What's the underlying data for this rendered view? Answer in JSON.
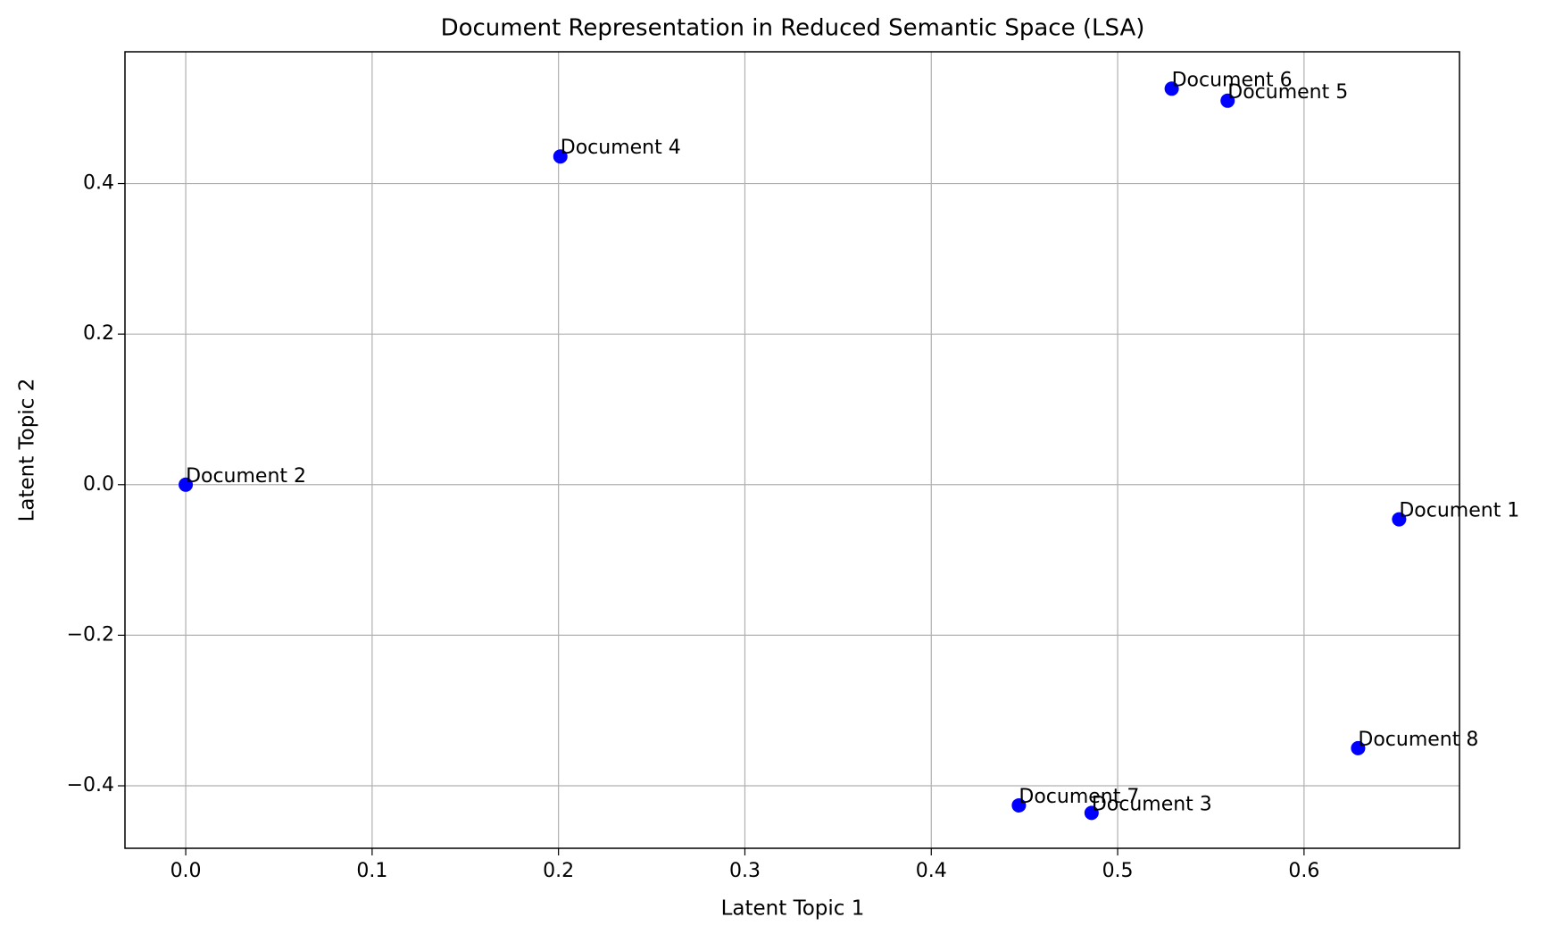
{
  "chart_data": {
    "type": "scatter",
    "title": "Document Representation in Reduced Semantic Space (LSA)",
    "xlabel": "Latent Topic 1",
    "ylabel": "Latent Topic 2",
    "color": "#0000ff",
    "labels": [
      "Document 1",
      "Document 2",
      "Document 3",
      "Document 4",
      "Document 5",
      "Document 6",
      "Document 7",
      "Document 8"
    ],
    "x": [
      0.651,
      0,
      0.486,
      0.201,
      0.559,
      0.529,
      0.447,
      0.629
    ],
    "y": [
      -0.046,
      0,
      -0.436,
      0.436,
      0.51,
      0.526,
      -0.426,
      -0.35
    ],
    "xlim": [
      -0.0326,
      0.6834
    ],
    "ylim": [
      -0.483,
      0.575
    ],
    "xticks": [
      {
        "value": 0,
        "label": "0.0"
      },
      {
        "value": 0.1,
        "label": "0.1"
      },
      {
        "value": 0.2,
        "label": "0.2"
      },
      {
        "value": 0.3,
        "label": "0.3"
      },
      {
        "value": 0.4,
        "label": "0.4"
      },
      {
        "value": 0.5,
        "label": "0.5"
      },
      {
        "value": 0.6,
        "label": "0.6"
      }
    ],
    "yticks": [
      {
        "value": -0.4,
        "label": "−0.4"
      },
      {
        "value": -0.2,
        "label": "−0.2"
      },
      {
        "value": 0,
        "label": "0.0"
      },
      {
        "value": 0.2,
        "label": "0.2"
      },
      {
        "value": 0.4,
        "label": "0.4"
      }
    ],
    "grid": true
  }
}
